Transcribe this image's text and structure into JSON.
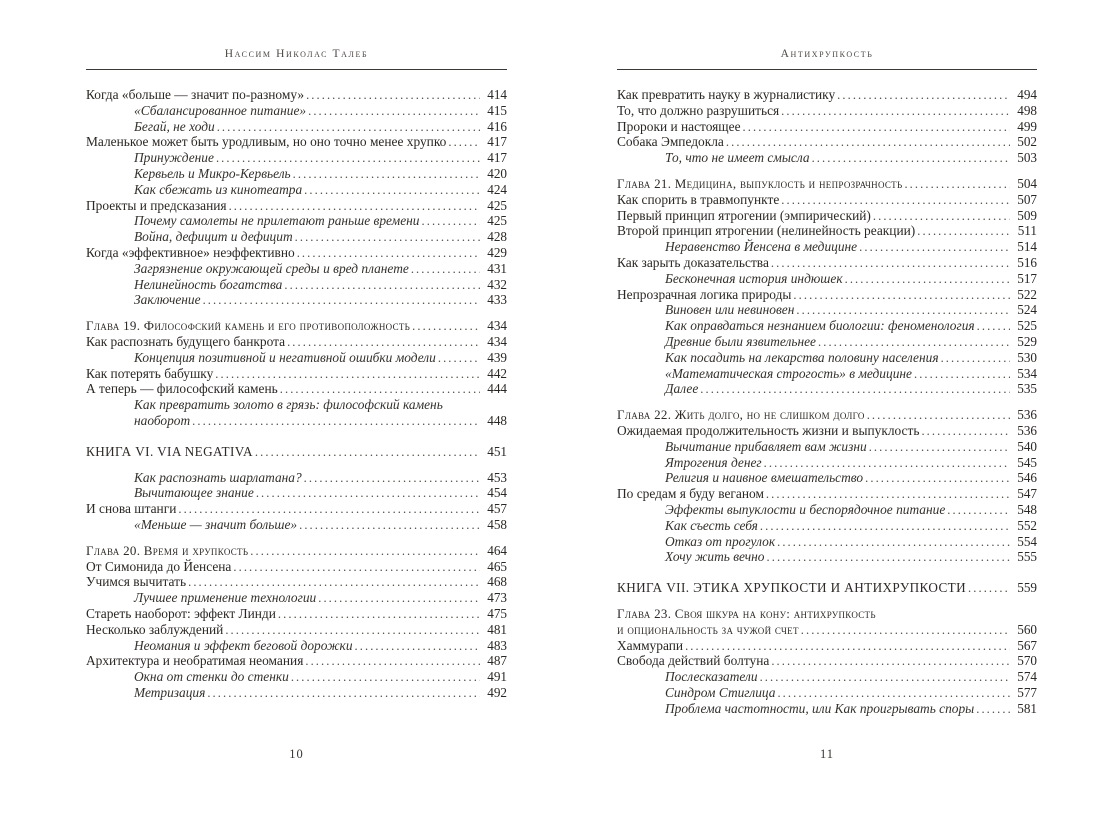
{
  "left_page": {
    "header": "Нассим Николас Талеб",
    "page_number": "10",
    "entries": [
      {
        "text": "Когда «больше — значит по-разному»",
        "page": "414",
        "style": "main"
      },
      {
        "text": "«Сбалансированное питание»",
        "page": "415",
        "style": "sub"
      },
      {
        "text": "Бегай, не ходи",
        "page": "416",
        "style": "sub"
      },
      {
        "text": "Маленькое может быть уродливым, но оно точно менее хрупко",
        "page": "417",
        "style": "main"
      },
      {
        "text": "Принуждение",
        "page": "417",
        "style": "sub"
      },
      {
        "text": "Кервьель и Микро-Кервьель",
        "page": "420",
        "style": "sub"
      },
      {
        "text": "Как сбежать из кинотеатра",
        "page": "424",
        "style": "sub"
      },
      {
        "text": "Проекты и предсказания",
        "page": "425",
        "style": "main"
      },
      {
        "text": "Почему самолеты не прилетают раньше времени",
        "page": "425",
        "style": "sub"
      },
      {
        "text": "Война, дефицит и дефицит",
        "page": "428",
        "style": "sub"
      },
      {
        "text": "Когда «эффективное» неэффективно",
        "page": "429",
        "style": "main"
      },
      {
        "text": "Загрязнение окружающей среды и вред планете",
        "page": "431",
        "style": "sub"
      },
      {
        "text": "Нелинейность богатства",
        "page": "432",
        "style": "sub"
      },
      {
        "text": "Заключение",
        "page": "433",
        "style": "sub"
      },
      {
        "text": "Глава 19. Философский камень и его противоположность",
        "page": "434",
        "style": "chapter",
        "gap": "small"
      },
      {
        "text": "Как распознать будущего банкрота",
        "page": "434",
        "style": "main"
      },
      {
        "text": "Концепция позитивной и негативной ошибки модели",
        "page": "439",
        "style": "sub"
      },
      {
        "text": "Как потерять бабушку",
        "page": "442",
        "style": "main"
      },
      {
        "text": "А теперь — философский камень",
        "page": "444",
        "style": "main"
      },
      {
        "text": "Как превратить золото в грязь: философский камень",
        "page": null,
        "style": "sub"
      },
      {
        "text": "наоборот",
        "page": "448",
        "style": "sub"
      },
      {
        "text": "КНИГА VI. VIA NEGATIVA",
        "page": "451",
        "style": "book",
        "gap": "large"
      },
      {
        "text": "Как распознать шарлатана?",
        "page": "453",
        "style": "sub",
        "gap": "small"
      },
      {
        "text": "Вычитающее знание",
        "page": "454",
        "style": "sub"
      },
      {
        "text": "И снова штанги",
        "page": "457",
        "style": "main"
      },
      {
        "text": "«Меньше — значит больше»",
        "page": "458",
        "style": "sub"
      },
      {
        "text": "Глава 20. Время и хрупкость",
        "page": "464",
        "style": "chapter",
        "gap": "small"
      },
      {
        "text": "От Симонида до Йенсена",
        "page": "465",
        "style": "main"
      },
      {
        "text": "Учимся вычитать",
        "page": "468",
        "style": "main"
      },
      {
        "text": "Лучшее применение технологии",
        "page": "473",
        "style": "sub"
      },
      {
        "text": "Стареть наоборот: эффект Линди",
        "page": "475",
        "style": "main"
      },
      {
        "text": "Несколько заблуждений",
        "page": "481",
        "style": "main"
      },
      {
        "text": "Неомания и эффект беговой дорожки",
        "page": "483",
        "style": "sub"
      },
      {
        "text": "Архитектура и необратимая неомания",
        "page": "487",
        "style": "main"
      },
      {
        "text": "Окна от стенки до стенки",
        "page": "491",
        "style": "sub"
      },
      {
        "text": "Метризация",
        "page": "492",
        "style": "sub"
      }
    ]
  },
  "right_page": {
    "header": "Антихрупкость",
    "page_number": "11",
    "entries": [
      {
        "text": "Как превратить науку в журналистику",
        "page": "494",
        "style": "main"
      },
      {
        "text": "То, что должно разрушиться",
        "page": "498",
        "style": "main"
      },
      {
        "text": "Пророки и настоящее",
        "page": "499",
        "style": "main"
      },
      {
        "text": "Собака Эмпедокла",
        "page": "502",
        "style": "main"
      },
      {
        "text": "То, что не имеет смысла",
        "page": "503",
        "style": "sub"
      },
      {
        "text": "Глава 21. Медицина, выпуклость и непрозрачность",
        "page": "504",
        "style": "chapter",
        "gap": "small"
      },
      {
        "text": "Как спорить в травмопункте",
        "page": "507",
        "style": "main"
      },
      {
        "text": "Первый принцип ятрогении (эмпирический)",
        "page": "509",
        "style": "main"
      },
      {
        "text": "Второй принцип ятрогении (нелинейность реакции)",
        "page": "511",
        "style": "main"
      },
      {
        "text": "Неравенство Йенсена в медицине",
        "page": "514",
        "style": "sub"
      },
      {
        "text": "Как зарыть доказательства",
        "page": "516",
        "style": "main"
      },
      {
        "text": "Бесконечная история индюшек",
        "page": "517",
        "style": "sub"
      },
      {
        "text": "Непрозрачная логика природы",
        "page": "522",
        "style": "main"
      },
      {
        "text": "Виновен или невиновен",
        "page": "524",
        "style": "sub"
      },
      {
        "text": "Как оправдаться незнанием биологии: феноменология",
        "page": "525",
        "style": "sub"
      },
      {
        "text": "Древние были язвительнее",
        "page": "529",
        "style": "sub"
      },
      {
        "text": "Как посадить на лекарства половину населения",
        "page": "530",
        "style": "sub"
      },
      {
        "text": "«Математическая строгость» в медицине",
        "page": "534",
        "style": "sub"
      },
      {
        "text": "Далее",
        "page": "535",
        "style": "sub"
      },
      {
        "text": "Глава 22. Жить долго, но не слишком долго",
        "page": "536",
        "style": "chapter",
        "gap": "small"
      },
      {
        "text": "Ожидаемая продолжительность жизни и выпуклость",
        "page": "536",
        "style": "main"
      },
      {
        "text": "Вычитание прибавляет вам жизни",
        "page": "540",
        "style": "sub"
      },
      {
        "text": "Ятрогения денег",
        "page": "545",
        "style": "sub"
      },
      {
        "text": "Религия и наивное вмешательство",
        "page": "546",
        "style": "sub"
      },
      {
        "text": "По средам я буду веганом",
        "page": "547",
        "style": "main"
      },
      {
        "text": "Эффекты выпуклости и беспорядочное питание",
        "page": "548",
        "style": "sub"
      },
      {
        "text": "Как съесть себя",
        "page": "552",
        "style": "sub"
      },
      {
        "text": "Отказ от прогулок",
        "page": "554",
        "style": "sub"
      },
      {
        "text": "Хочу жить вечно",
        "page": "555",
        "style": "sub"
      },
      {
        "text": "КНИГА VII. ЭТИКА ХРУПКОСТИ И АНТИХРУПКОСТИ",
        "page": "559",
        "style": "book",
        "gap": "large"
      },
      {
        "text": "Глава 23. Своя шкура на кону: антихрупкость",
        "page": null,
        "style": "chapter",
        "gap": "small"
      },
      {
        "text": "и опциональность за чужой счет",
        "page": "560",
        "style": "chapter"
      },
      {
        "text": "Хаммурапи",
        "page": "567",
        "style": "main"
      },
      {
        "text": "Свобода действий болтуна",
        "page": "570",
        "style": "main"
      },
      {
        "text": "Послесказатели",
        "page": "574",
        "style": "sub"
      },
      {
        "text": "Синдром Стиглица",
        "page": "577",
        "style": "sub"
      },
      {
        "text": "Проблема частотности, или Как проигрывать споры",
        "page": "581",
        "style": "sub"
      }
    ]
  }
}
